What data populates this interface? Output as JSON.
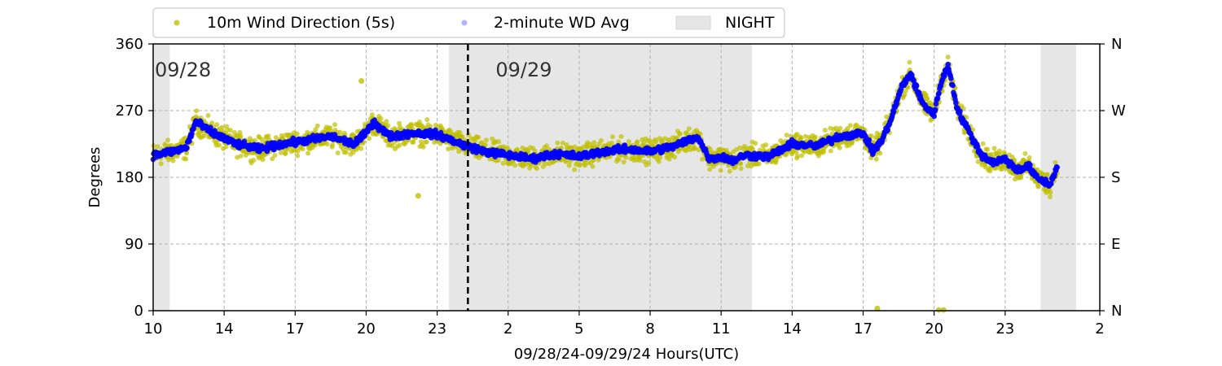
{
  "chart_data": {
    "type": "scatter",
    "xlabel": "09/28/24-09/29/24  Hours(UTC)",
    "ylabel": "Degrees",
    "xlim": [
      10,
      50
    ],
    "ylim": [
      0,
      360
    ],
    "x_ticks": [
      {
        "value": 10,
        "label": "10"
      },
      {
        "value": 13,
        "label": "14"
      },
      {
        "value": 16,
        "label": "17"
      },
      {
        "value": 19,
        "label": "20"
      },
      {
        "value": 22,
        "label": "23"
      },
      {
        "value": 25,
        "label": "2"
      },
      {
        "value": 28,
        "label": "5"
      },
      {
        "value": 31,
        "label": "8"
      },
      {
        "value": 34,
        "label": "11"
      },
      {
        "value": 37,
        "label": "14"
      },
      {
        "value": 40,
        "label": "17"
      },
      {
        "value": 43,
        "label": "20"
      },
      {
        "value": 46,
        "label": "23"
      },
      {
        "value": 50,
        "label": "2"
      }
    ],
    "y_ticks": [
      0,
      90,
      180,
      270,
      360
    ],
    "y_ticks_right": [
      {
        "value": 0,
        "label": "N"
      },
      {
        "value": 90,
        "label": "E"
      },
      {
        "value": 180,
        "label": "S"
      },
      {
        "value": 270,
        "label": "W"
      },
      {
        "value": 360,
        "label": "N"
      }
    ],
    "grid": true,
    "legend_position": "top",
    "legend": [
      {
        "label": "10m Wind Direction (5s)",
        "color": "#bfbf00"
      },
      {
        "label": "2-minute WD Avg",
        "color": "#0000ff"
      },
      {
        "label": "NIGHT",
        "color": "#e6e6e6"
      }
    ],
    "night_spans": [
      [
        10,
        10.7
      ],
      [
        22.5,
        35.3
      ],
      [
        47.5,
        49.0
      ]
    ],
    "day_divider_x": 23.3,
    "date_labels": [
      {
        "x": 10,
        "y": 325,
        "text": "09/28"
      },
      {
        "x": 24.4,
        "y": 325,
        "text": "09/29"
      }
    ],
    "series": [
      {
        "name": "10m Wind Direction (5s)",
        "color": "#bfbf00",
        "spread": 22,
        "x": [
          10,
          10.8,
          11.4,
          11.8,
          12.5,
          13.5,
          14.5,
          15.5,
          16.5,
          17.5,
          18.5,
          19,
          19.3,
          20,
          21,
          22,
          23,
          24,
          25,
          26,
          27,
          28,
          29,
          30,
          31,
          32,
          33,
          33.5,
          34,
          34.5,
          35,
          36,
          37,
          38,
          39,
          40,
          40.4,
          40.8,
          41.2,
          41.6,
          42,
          42.5,
          43,
          43.3,
          43.6,
          44,
          44.5,
          45,
          45.5,
          46,
          46.5,
          47,
          47.3,
          47.6,
          47.9,
          48.2
        ],
        "y": [
          210,
          215,
          220,
          255,
          240,
          225,
          218,
          225,
          230,
          235,
          225,
          240,
          255,
          235,
          240,
          238,
          225,
          215,
          210,
          205,
          212,
          208,
          215,
          218,
          215,
          222,
          235,
          205,
          208,
          202,
          210,
          208,
          225,
          222,
          235,
          240,
          215,
          230,
          260,
          300,
          320,
          280,
          265,
          310,
          330,
          270,
          240,
          210,
          200,
          205,
          190,
          195,
          180,
          175,
          170,
          195
        ]
      },
      {
        "name": "2-minute WD Avg",
        "color": "#0000ff",
        "spread": 7,
        "x": [
          10,
          10.8,
          11.4,
          11.8,
          12.5,
          13.5,
          14.5,
          15.5,
          16.5,
          17.5,
          18.5,
          19,
          19.3,
          20,
          21,
          22,
          23,
          24,
          25,
          26,
          27,
          28,
          29,
          30,
          31,
          32,
          33,
          33.5,
          34,
          34.5,
          35,
          36,
          37,
          38,
          39,
          40,
          40.4,
          40.8,
          41.2,
          41.6,
          42,
          42.5,
          43,
          43.3,
          43.6,
          44,
          44.5,
          45,
          45.5,
          46,
          46.5,
          47,
          47.3,
          47.6,
          47.9,
          48.2
        ],
        "y": [
          210,
          215,
          220,
          255,
          240,
          225,
          218,
          225,
          230,
          235,
          225,
          240,
          255,
          235,
          240,
          238,
          225,
          215,
          210,
          205,
          212,
          208,
          215,
          218,
          215,
          222,
          235,
          205,
          208,
          202,
          210,
          208,
          225,
          222,
          235,
          240,
          215,
          230,
          260,
          300,
          320,
          280,
          265,
          310,
          330,
          270,
          240,
          210,
          200,
          205,
          190,
          195,
          180,
          175,
          170,
          195
        ]
      }
    ],
    "outliers": [
      {
        "x": 40.6,
        "y": 3
      },
      {
        "x": 43.2,
        "y": 1
      },
      {
        "x": 43.4,
        "y": 1
      },
      {
        "x": 18.8,
        "y": 310
      },
      {
        "x": 21.2,
        "y": 155
      }
    ]
  }
}
